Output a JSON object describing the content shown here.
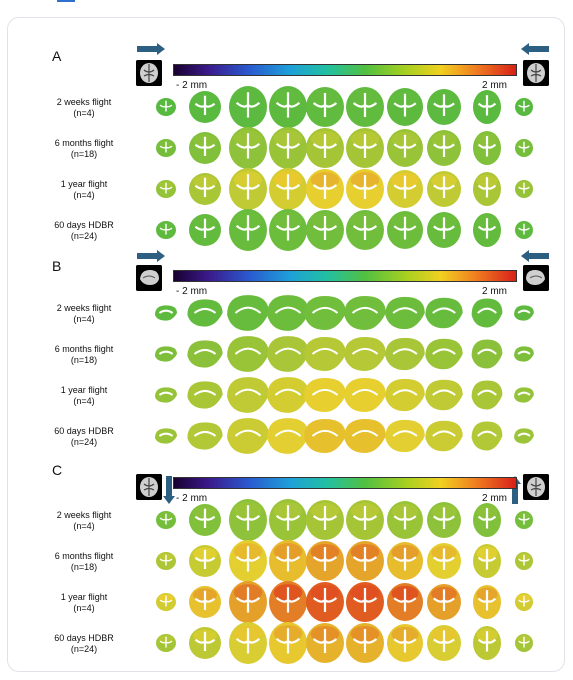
{
  "panels": [
    {
      "label": "A",
      "view": "coronal",
      "colorbar_min": "- 2 mm",
      "colorbar_max": "2 mm",
      "rows": [
        {
          "line1": "2 weeks flight",
          "line2": "(n=4)",
          "intensity": 0.05
        },
        {
          "line1": "6 months flight",
          "line2": "(n=18)",
          "intensity": 0.25
        },
        {
          "line1": "1 year flight",
          "line2": "(n=4)",
          "intensity": 0.45
        },
        {
          "line1": "60 days HDBR",
          "line2": "(n=24)",
          "intensity": 0.1
        }
      ]
    },
    {
      "label": "B",
      "view": "sagittal",
      "colorbar_min": "- 2 mm",
      "colorbar_max": "2 mm",
      "rows": [
        {
          "line1": "2 weeks flight",
          "line2": "(n=4)",
          "intensity": 0.1
        },
        {
          "line1": "6 months flight",
          "line2": "(n=18)",
          "intensity": 0.3
        },
        {
          "line1": "1 year flight",
          "line2": "(n=4)",
          "intensity": 0.45
        },
        {
          "line1": "60 days HDBR",
          "line2": "(n=24)",
          "intensity": 0.5
        }
      ]
    },
    {
      "label": "C",
      "view": "coronal-vertical",
      "colorbar_min": "- 2 mm",
      "colorbar_max": "2 mm",
      "rows": [
        {
          "line1": "2 weeks flight",
          "line2": "(n=4)",
          "intensity": 0.25
        },
        {
          "line1": "6 months flight",
          "line2": "(n=18)",
          "intensity": 0.6
        },
        {
          "line1": "1 year flight",
          "line2": "(n=4)",
          "intensity": 0.85
        },
        {
          "line1": "60 days HDBR",
          "line2": "(n=24)",
          "intensity": 0.55
        }
      ]
    }
  ],
  "colors": {
    "arrow": "#2d5f82",
    "low_green": "#4fb840",
    "mid_yellow": "#e8d030",
    "high_red": "#e05020"
  }
}
